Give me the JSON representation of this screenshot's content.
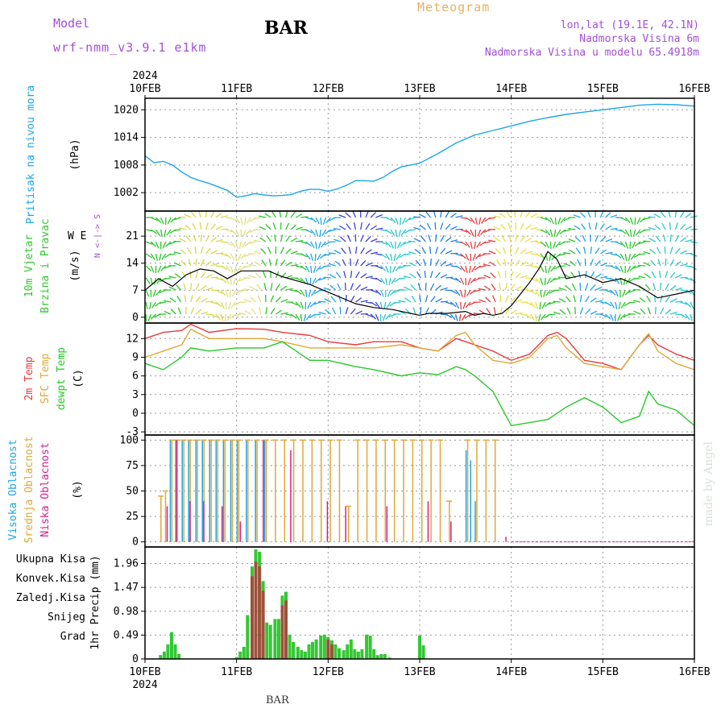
{
  "header": {
    "model_label": "Model",
    "model_name": "wrf-nmm_v3.9.1 e1km",
    "station": "BAR",
    "chart_kind": "Meteogram",
    "coords": "lon,lat (19.1E, 42.1N)",
    "height": "Nadmorska Visina 6m",
    "model_height": "Nadmorska Visina u modelu 65.4918m"
  },
  "credit": "made by Angel",
  "footer_station": "BAR",
  "colors": {
    "pressure": "#1ea6e8",
    "wind_speed": "#000000",
    "gust": "#e03030",
    "t2m": "#e83c3c",
    "sfc_temp": "#e0a838",
    "dewpoint": "#28c828",
    "high_cloud": "#1ea6e8",
    "mid_cloud": "#e0a838",
    "low_cloud": "#d81e8c",
    "total_precip": "#32c832",
    "conv_precip": "#b03c3c",
    "frozen": "#f08030",
    "snow": "#4040e0",
    "graupel": "#30c8c8",
    "label_purple": "#a34fd6"
  },
  "chart_data": [
    {
      "type": "line",
      "panel": "pressure",
      "year": "2024",
      "x_ticks": [
        "10FEB",
        "11FEB",
        "12FEB",
        "13FEB",
        "14FEB",
        "15FEB",
        "16FEB"
      ],
      "ylabel_desc": "Pritisak na nivou mora",
      "ylabel_unit": "(hPa)",
      "yticks": [
        "1002",
        "1008",
        "1014",
        "1020"
      ],
      "ylim": [
        998,
        1022.5
      ],
      "grid": true,
      "series": [
        {
          "name": "Pritisak na nivou mora",
          "x_days": [
            0,
            0.1,
            0.2,
            0.3,
            0.4,
            0.5,
            0.6,
            0.7,
            0.9,
            1.0,
            1.1,
            1.2,
            1.3,
            1.4,
            1.5,
            1.6,
            1.7,
            1.8,
            1.9,
            2.0,
            2.1,
            2.2,
            2.3,
            2.4,
            2.5,
            2.6,
            2.7,
            2.8,
            2.9,
            3.0,
            3.2,
            3.4,
            3.6,
            3.8,
            4.0,
            4.2,
            4.4,
            4.6,
            4.8,
            5.0,
            5.2,
            5.4,
            5.6,
            5.8,
            6.0
          ],
          "values": [
            1010,
            1008.5,
            1008.8,
            1008,
            1006.5,
            1005.3,
            1004.6,
            1004,
            1002.5,
            1001,
            1001.3,
            1001.8,
            1001.5,
            1001.3,
            1001.4,
            1001.6,
            1002.3,
            1002.7,
            1002.7,
            1002.3,
            1002.8,
            1003.6,
            1004.6,
            1004.6,
            1004.5,
            1005.3,
            1006.6,
            1007.6,
            1008,
            1008.4,
            1010.5,
            1012.8,
            1014.5,
            1015.5,
            1016.5,
            1017.5,
            1018.3,
            1019,
            1019.5,
            1020,
            1020.5,
            1021,
            1021.2,
            1021.1,
            1020.8
          ]
        }
      ]
    },
    {
      "type": "line",
      "panel": "wind",
      "ylabel_desc": "10m Vjetar Brzina i Pravac",
      "ylabel_unit": "(m/s)",
      "compass_ns": "N <-|-> S",
      "compass_we": "W        E",
      "yticks": [
        "0",
        "7",
        "14",
        "21"
      ],
      "ylim": [
        -1.5,
        27.5
      ],
      "grid": true,
      "arrow_colors_by_time": [
        "#28c828",
        "#d8d848",
        "#e0e080",
        "#28c828",
        "#1ea6e8",
        "#4040e0",
        "#28c8c8",
        "#2080e0",
        "#e83c3c",
        "#e8e040",
        "#28c828",
        "#1ea6e8",
        "#28c828",
        "#28c8c8"
      ],
      "series": [
        {
          "name": "speed",
          "x_days": [
            0,
            0.15,
            0.3,
            0.45,
            0.6,
            0.75,
            0.9,
            1.05,
            1.2,
            1.35,
            1.5,
            1.65,
            1.8,
            1.95,
            2.1,
            2.3,
            2.5,
            2.7,
            2.9,
            3.0,
            3.1,
            3.3,
            3.5,
            3.6,
            3.7,
            3.8,
            3.9,
            4.0,
            4.1,
            4.2,
            4.3,
            4.4,
            4.5,
            4.6,
            4.8,
            5.0,
            5.2,
            5.4,
            5.6,
            5.8,
            6.0
          ],
          "values": [
            7,
            10,
            8,
            11,
            12.5,
            12,
            10,
            12,
            12,
            12,
            10.5,
            9.5,
            8.5,
            7,
            5.5,
            3.5,
            2.5,
            2,
            1,
            0.5,
            1,
            1,
            1.5,
            0.5,
            1,
            0.5,
            1,
            3,
            6,
            9,
            12.5,
            17,
            15,
            10,
            11,
            9,
            10,
            8,
            5,
            6,
            7
          ]
        }
      ]
    },
    {
      "type": "line",
      "panel": "temperature",
      "ylabel_t2m": "2m Temp",
      "ylabel_sfc": "SFC Temp",
      "ylabel_dew": "dewpt Temp",
      "ylabel_unit": "(C)",
      "yticks": [
        "-3",
        "0",
        "3",
        "6",
        "9",
        "12"
      ],
      "ylim": [
        -3.5,
        14.5
      ],
      "grid": true,
      "series": [
        {
          "name": "2m Temp",
          "x_days": [
            0,
            0.2,
            0.4,
            0.5,
            0.7,
            1.0,
            1.3,
            1.5,
            1.8,
            2.0,
            2.3,
            2.5,
            2.8,
            3.0,
            3.2,
            3.4,
            3.5,
            3.6,
            3.8,
            4.0,
            4.2,
            4.4,
            4.5,
            4.6,
            4.8,
            5.0,
            5.2,
            5.4,
            5.5,
            5.6,
            5.8,
            6.0
          ],
          "values": [
            12,
            13,
            13.3,
            14.3,
            13,
            13.6,
            13.5,
            13,
            12.5,
            11.5,
            11,
            11.5,
            11.5,
            10.5,
            10,
            12,
            11.5,
            11,
            10,
            8.5,
            9.5,
            12.5,
            13,
            12,
            8.5,
            8,
            7,
            11,
            12.5,
            11,
            9.5,
            8.5
          ]
        },
        {
          "name": "SFC Temp",
          "x_days": [
            0,
            0.2,
            0.4,
            0.5,
            0.7,
            1.0,
            1.3,
            1.5,
            1.8,
            2.0,
            2.3,
            2.5,
            2.8,
            3.0,
            3.2,
            3.4,
            3.5,
            3.6,
            3.8,
            4.0,
            4.2,
            4.4,
            4.5,
            4.6,
            4.8,
            5.0,
            5.2,
            5.4,
            5.5,
            5.6,
            5.8,
            6.0
          ],
          "values": [
            9,
            10,
            11,
            13.5,
            12,
            12,
            12,
            11.5,
            10.5,
            10.5,
            10.5,
            10.5,
            11,
            10.5,
            10,
            12.5,
            13,
            11,
            8.5,
            8,
            9,
            12,
            12.5,
            10.5,
            8,
            7.5,
            7,
            11,
            12.8,
            10,
            8,
            7
          ]
        },
        {
          "name": "dewpt Temp",
          "x_days": [
            0,
            0.2,
            0.4,
            0.5,
            0.7,
            1.0,
            1.3,
            1.5,
            1.8,
            2.0,
            2.3,
            2.5,
            2.8,
            3.0,
            3.2,
            3.4,
            3.5,
            3.6,
            3.8,
            4.0,
            4.2,
            4.4,
            4.6,
            4.8,
            5.0,
            5.2,
            5.4,
            5.5,
            5.6,
            5.8,
            6.0
          ],
          "values": [
            8,
            7,
            9,
            10.5,
            10,
            10.5,
            10.5,
            11.5,
            8.5,
            8.5,
            7.5,
            7,
            6,
            6.5,
            6.2,
            7.5,
            7,
            6,
            3.5,
            -2,
            -1.5,
            -1,
            1,
            2.5,
            1,
            -1.5,
            -0.5,
            3.5,
            1.5,
            0.5,
            -2
          ]
        }
      ]
    },
    {
      "type": "bar",
      "panel": "clouds",
      "ylabel_high": "Visoka Oblacnost",
      "ylabel_mid": "Srednja Oblacnost",
      "ylabel_low": "Niska Oblacnost",
      "ylabel_unit": "(%)",
      "yticks": [
        "0",
        "25",
        "50",
        "75",
        "100"
      ],
      "ylim": [
        -5,
        105
      ],
      "grid": true,
      "series": [
        {
          "name": "Visoka Oblacnost",
          "x_days": [
            0.15,
            0.2,
            0.27,
            0.33,
            0.4,
            0.47,
            0.55,
            0.62,
            0.7,
            0.77,
            0.85,
            0.93,
            1.0,
            1.1,
            1.2,
            1.3,
            3.5,
            3.55,
            3.6
          ],
          "values": [
            0,
            0,
            100,
            100,
            100,
            100,
            100,
            100,
            100,
            100,
            100,
            100,
            100,
            100,
            100,
            100,
            90,
            80,
            40
          ]
        },
        {
          "name": "Srednja Oblacnost",
          "x_days": [
            0.15,
            0.2,
            0.27,
            0.33,
            0.4,
            0.47,
            0.55,
            0.62,
            0.7,
            0.77,
            0.85,
            0.93,
            1.0,
            1.1,
            1.2,
            1.3,
            1.4,
            1.5,
            1.6,
            1.7,
            1.8,
            1.9,
            2.0,
            2.1,
            2.2,
            2.3,
            2.4,
            2.5,
            2.6,
            2.7,
            2.8,
            2.9,
            3.0,
            3.1,
            3.2,
            3.3,
            3.5,
            3.6,
            3.7,
            3.8
          ],
          "values": [
            45,
            50,
            100,
            100,
            100,
            100,
            100,
            100,
            100,
            100,
            100,
            100,
            100,
            100,
            100,
            100,
            100,
            100,
            100,
            100,
            100,
            100,
            100,
            100,
            35,
            100,
            100,
            100,
            100,
            100,
            100,
            100,
            100,
            100,
            100,
            40,
            100,
            100,
            100,
            100
          ]
        },
        {
          "name": "Niska Oblacnost",
          "x_days": [
            0.2,
            0.3,
            0.45,
            0.6,
            0.8,
            1.0,
            1.25,
            1.55,
            1.95,
            2.15,
            2.6,
            3.05,
            3.3,
            3.9
          ],
          "values": [
            35,
            100,
            40,
            40,
            35,
            20,
            100,
            90,
            40,
            35,
            35,
            40,
            20,
            5
          ]
        }
      ]
    },
    {
      "type": "bar",
      "panel": "precipitation",
      "legend": [
        "Ukupna Kisa",
        "Konvek.Kisa",
        "Zaledj.Kisa",
        "Snijeg",
        "Grad"
      ],
      "ylabel": "1hr Precip (mm)",
      "yticks": [
        "0",
        "0.49",
        "0.98",
        "1.47",
        "1.96"
      ],
      "ylim": [
        0,
        2.3
      ],
      "grid": true,
      "series": [
        {
          "name": "Ukupna Kisa",
          "x_days": [
            0.17,
            0.21,
            0.25,
            0.29,
            0.33,
            0.37,
            1.0,
            1.04,
            1.08,
            1.12,
            1.17,
            1.21,
            1.25,
            1.29,
            1.33,
            1.37,
            1.42,
            1.46,
            1.5,
            1.54,
            1.58,
            1.62,
            1.67,
            1.71,
            1.75,
            1.79,
            1.83,
            1.87,
            1.92,
            1.96,
            2.0,
            2.04,
            2.08,
            2.12,
            2.17,
            2.21,
            2.25,
            2.29,
            2.33,
            2.37,
            2.42,
            2.46,
            2.5,
            2.54,
            2.58,
            2.62,
            2.67,
            3.0,
            3.04
          ],
          "values": [
            0.08,
            0.15,
            0.3,
            0.55,
            0.3,
            0.1,
            0.04,
            0.15,
            0.25,
            0.9,
            1.9,
            2.25,
            2.2,
            1.6,
            0.75,
            0.7,
            0.82,
            0.82,
            1.3,
            1.38,
            0.5,
            0.35,
            0.25,
            0.18,
            0.15,
            0.3,
            0.35,
            0.4,
            0.48,
            0.5,
            0.45,
            0.38,
            0.3,
            0.22,
            0.18,
            0.3,
            0.4,
            0.2,
            0.15,
            0.2,
            0.5,
            0.48,
            0.2,
            0.08,
            0.1,
            0.1,
            0.03,
            0.48,
            0.28
          ]
        },
        {
          "name": "Konvek.Kisa",
          "x_days": [
            1.17,
            1.21,
            1.25,
            1.29,
            1.5,
            1.54,
            2.0,
            2.04
          ],
          "values": [
            1.7,
            2.0,
            1.9,
            1.4,
            1.1,
            1.2,
            0.4,
            0.3
          ]
        }
      ]
    }
  ]
}
